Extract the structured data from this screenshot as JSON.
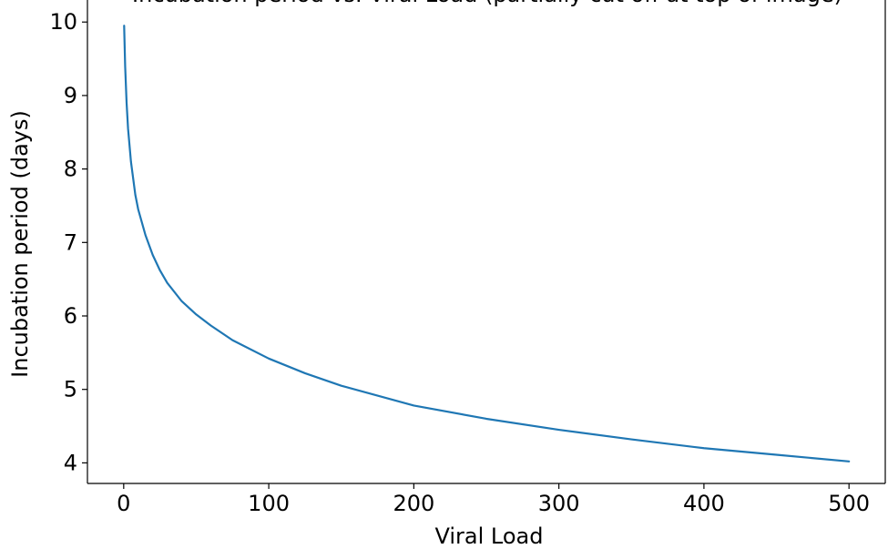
{
  "chart_data": {
    "type": "line",
    "title": "Incubation period vs. Viral Load (partially cut off at top of image)",
    "xlabel": "Viral Load",
    "ylabel": "Incubation period (days)",
    "xlim": [
      -25,
      525
    ],
    "ylim": [
      3.72,
      10.3
    ],
    "xticks": [
      0,
      100,
      200,
      300,
      400,
      500
    ],
    "yticks": [
      4,
      5,
      6,
      7,
      8,
      9,
      10
    ],
    "grid": false,
    "series": [
      {
        "color": "#1f77b4",
        "x": [
          0.3,
          1,
          2,
          3,
          5,
          8,
          10,
          15,
          20,
          25,
          30,
          40,
          50,
          60,
          75,
          100,
          125,
          150,
          200,
          250,
          300,
          350,
          400,
          450,
          500
        ],
        "y": [
          9.95,
          9.4,
          8.9,
          8.55,
          8.1,
          7.65,
          7.45,
          7.1,
          6.83,
          6.62,
          6.45,
          6.2,
          6.02,
          5.87,
          5.67,
          5.42,
          5.22,
          5.05,
          4.78,
          4.6,
          4.45,
          4.32,
          4.2,
          4.11,
          4.02
        ]
      }
    ]
  }
}
